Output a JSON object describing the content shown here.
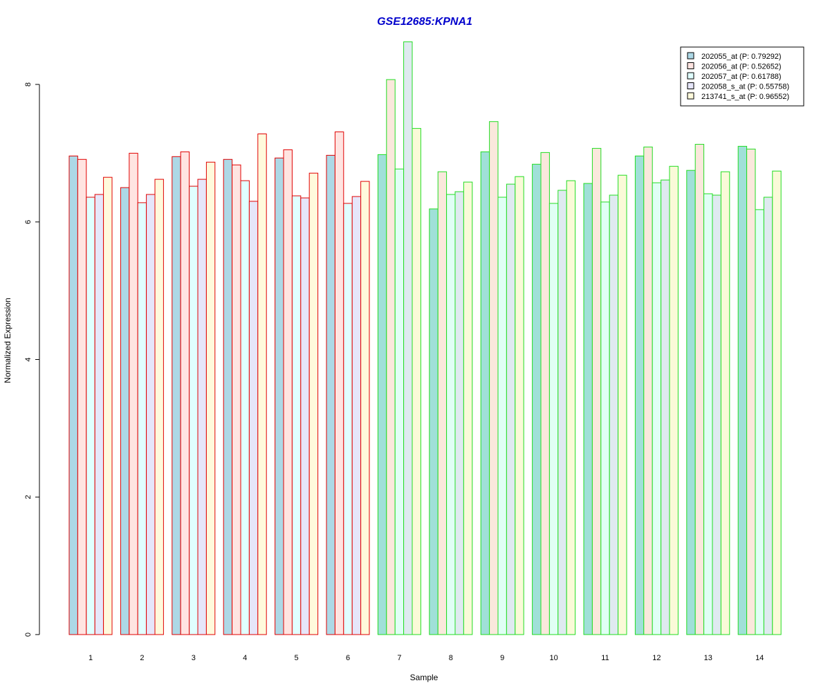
{
  "chart_data": {
    "type": "bar",
    "title": "GSE12685:KPNA1",
    "xlabel": "Sample",
    "ylabel": "Normalized Expression",
    "ylim": [
      0,
      8.6
    ],
    "yticks": [
      0,
      2,
      4,
      6,
      8
    ],
    "categories": [
      "1",
      "2",
      "3",
      "4",
      "5",
      "6",
      "7",
      "8",
      "9",
      "10",
      "11",
      "12",
      "13",
      "14"
    ],
    "group_border_colors": [
      "#e00000",
      "#e00000",
      "#e00000",
      "#e00000",
      "#e00000",
      "#e00000",
      "#22dd22",
      "#22dd22",
      "#22dd22",
      "#22dd22",
      "#22dd22",
      "#22dd22",
      "#22dd22",
      "#22dd22"
    ],
    "legend_position": "top-right",
    "grid": false,
    "series": [
      {
        "name": "202055_at (P: 0.79292)",
        "fill_light": "#add8e6",
        "fill_dark": "#a0e0d8",
        "values": [
          6.96,
          6.5,
          6.95,
          6.91,
          6.93,
          6.97,
          6.98,
          6.19,
          7.02,
          6.84,
          6.56,
          6.96,
          6.75,
          7.1
        ]
      },
      {
        "name": "202056_at (P: 0.52652)",
        "fill_light": "#ffe4e1",
        "fill_dark": "#fae8dc",
        "values": [
          6.91,
          7.0,
          7.02,
          6.83,
          7.05,
          7.31,
          8.07,
          6.73,
          7.46,
          7.01,
          7.07,
          7.09,
          7.13,
          7.06
        ]
      },
      {
        "name": "202057_at (P: 0.61788)",
        "fill_light": "#e0ffff",
        "fill_dark": "#e0fff5",
        "values": [
          6.36,
          6.28,
          6.52,
          6.6,
          6.38,
          6.27,
          6.77,
          6.4,
          6.36,
          6.27,
          6.29,
          6.57,
          6.41,
          6.18
        ]
      },
      {
        "name": "202058_s_at (P: 0.55758)",
        "fill_light": "#e6e6fa",
        "fill_dark": "#dfeaf0",
        "values": [
          6.4,
          6.4,
          6.62,
          6.3,
          6.35,
          6.37,
          8.62,
          6.44,
          6.55,
          6.46,
          6.39,
          6.61,
          6.39,
          6.36
        ]
      },
      {
        "name": "213741_s_at (P: 0.96552)",
        "fill_light": "#fffadc",
        "fill_dark": "#fafad8",
        "values": [
          6.65,
          6.62,
          6.87,
          7.28,
          6.71,
          6.59,
          7.36,
          6.58,
          6.66,
          6.6,
          6.68,
          6.81,
          6.73,
          6.74
        ]
      }
    ]
  }
}
